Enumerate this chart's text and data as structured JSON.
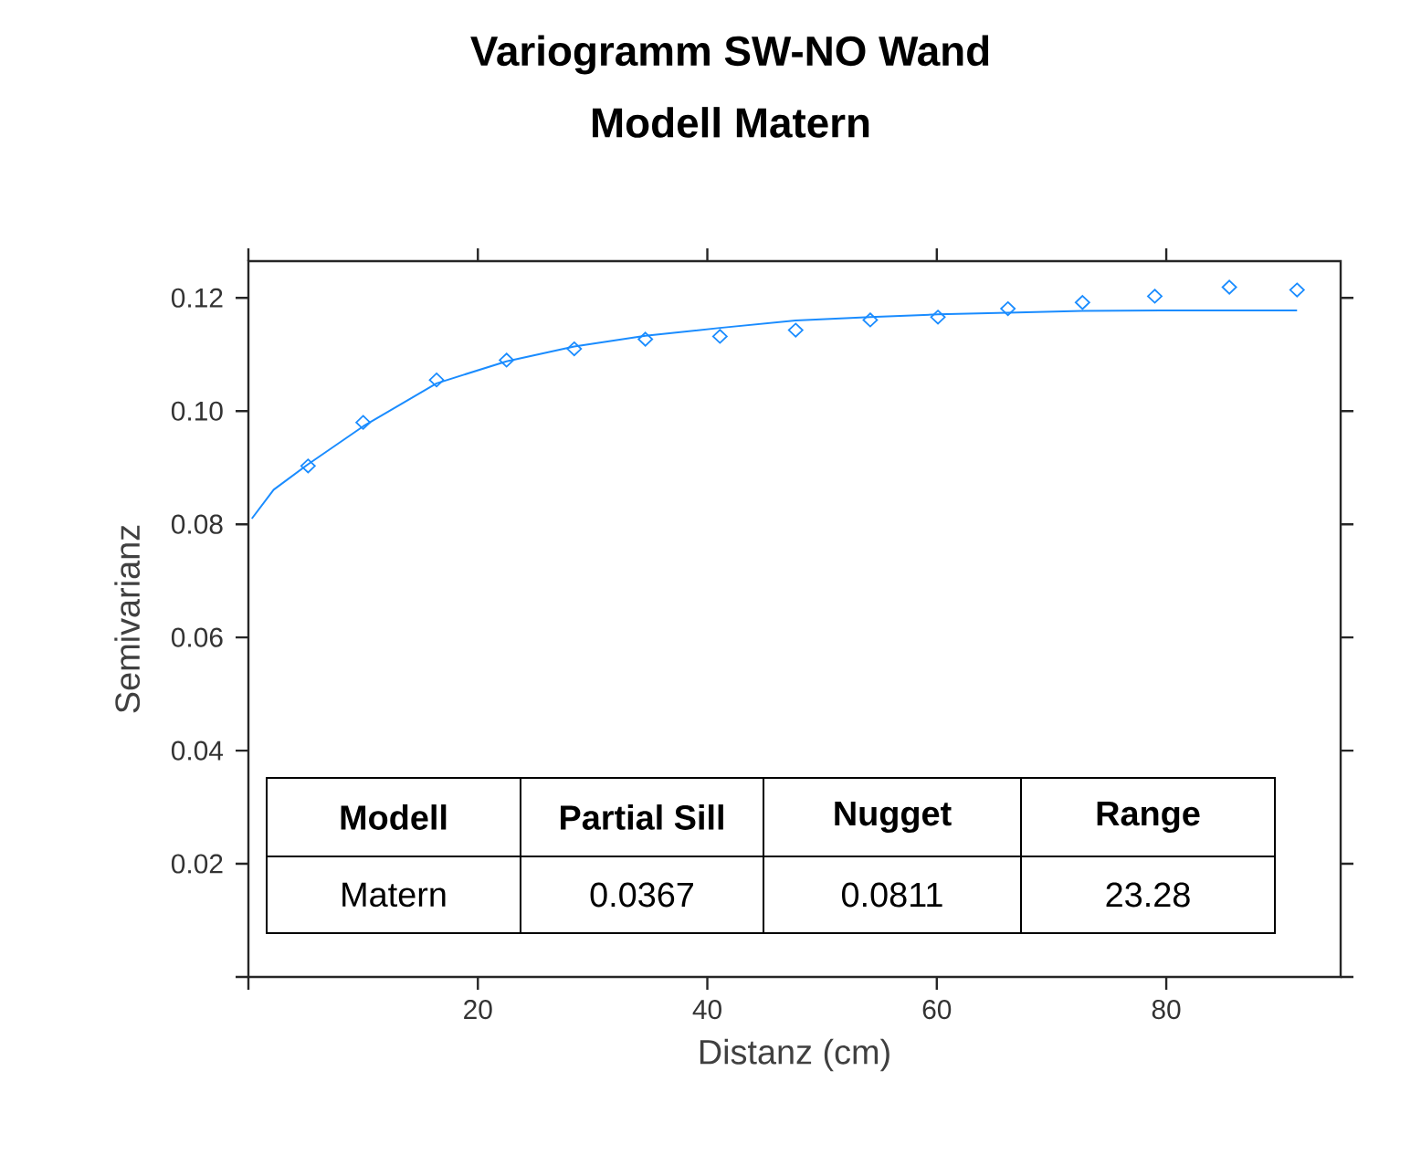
{
  "chart_data": {
    "type": "scatter",
    "title": "Variogramm SW-NO Wand",
    "subtitle": "Modell Matern",
    "xlabel": "Distanz (cm)",
    "ylabel": "Semivarianz",
    "xlim": [
      0,
      95.2
    ],
    "ylim": [
      0,
      0.1265
    ],
    "xticks": [
      {
        "value": 0,
        "label": null
      },
      20,
      40,
      60,
      80
    ],
    "yticks": [
      {
        "value": 0,
        "label": null
      },
      {
        "value": 0.02,
        "label": "0.02"
      },
      {
        "value": 0.04,
        "label": "0.04"
      },
      {
        "value": 0.06,
        "label": "0.06"
      },
      {
        "value": 0.08,
        "label": "0.08"
      },
      {
        "value": 0.1,
        "label": "0.10"
      },
      {
        "value": 0.12,
        "label": "0.12"
      }
    ],
    "series": [
      {
        "color": "#1a8cff",
        "marker": "diamond",
        "x": [
          5.2,
          10.0,
          16.4,
          22.5,
          28.4,
          34.6,
          41.1,
          47.7,
          54.2,
          60.1,
          66.2,
          72.7,
          79.0,
          85.5,
          91.4
        ],
        "values": [
          0.0903,
          0.098,
          0.1055,
          0.109,
          0.111,
          0.1127,
          0.1132,
          0.1143,
          0.1161,
          0.1166,
          0.1181,
          0.1192,
          0.1203,
          0.1219,
          0.1214
        ]
      },
      {
        "type": "line",
        "color": "#1a8cff",
        "line_style": "solid",
        "x": [
          0.3,
          2.2,
          5.2,
          10.0,
          16.4,
          22.5,
          28.4,
          34.6,
          41.1,
          47.7,
          54.2,
          60.1,
          66.2,
          72.7,
          81.0,
          91.4
        ],
        "values": [
          0.081,
          0.0861,
          0.0906,
          0.0973,
          0.1049,
          0.1088,
          0.1114,
          0.1133,
          0.1147,
          0.116,
          0.1166,
          0.1171,
          0.1174,
          0.1177,
          0.1178,
          0.1178
        ]
      }
    ],
    "annotations": [
      "Modell",
      "Partial Sill",
      "Nugget",
      "Range",
      "Matern",
      "0.0367",
      "0.0811",
      "23.28"
    ]
  }
}
